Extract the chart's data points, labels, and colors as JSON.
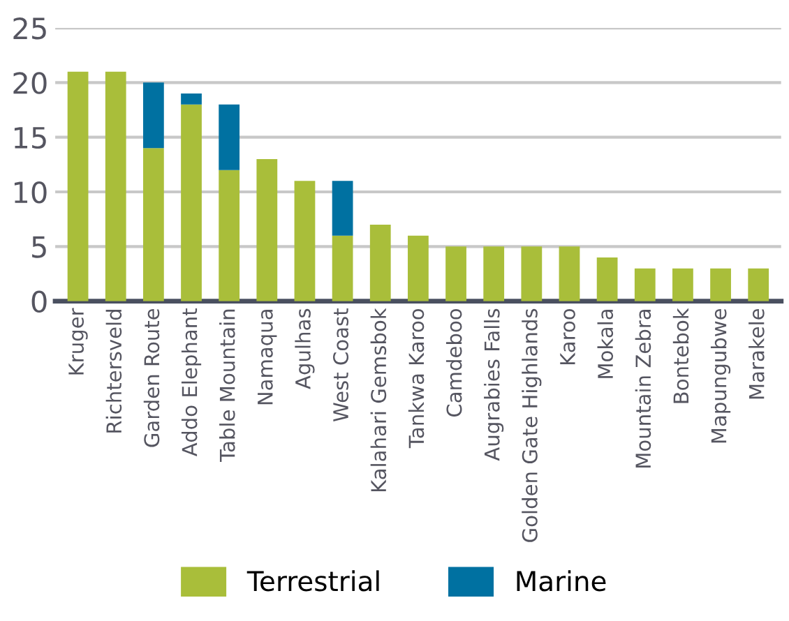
{
  "chart_data": {
    "type": "bar",
    "stacked": true,
    "categories": [
      "Kruger",
      "Richtersveld",
      "Garden Route",
      "Addo Elephant",
      "Table Mountain",
      "Namaqua",
      "Agulhas",
      "West Coast",
      "Kalahari Gemsbok",
      "Tankwa Karoo",
      "Camdeboo",
      "Augrabies Falls",
      "Golden Gate Highlands",
      "Karoo",
      "Mokala",
      "Mountain Zebra",
      "Bontebok",
      "Mapungubwe",
      "Marakele"
    ],
    "series": [
      {
        "name": "Terrestrial",
        "color": "#a9be3a",
        "values": [
          21,
          21,
          14,
          18,
          12,
          13,
          11,
          6,
          7,
          6,
          5,
          5,
          5,
          5,
          4,
          3,
          3,
          3,
          3
        ]
      },
      {
        "name": "Marine",
        "color": "#0071a1",
        "values": [
          0,
          0,
          6,
          1,
          6,
          0,
          0,
          5,
          0,
          0,
          0,
          0,
          0,
          0,
          0,
          0,
          0,
          0,
          0
        ]
      }
    ],
    "ylim": [
      0,
      25
    ],
    "yticks": [
      0,
      5,
      10,
      15,
      20,
      25
    ],
    "grid": "y",
    "legend": "bottom"
  }
}
